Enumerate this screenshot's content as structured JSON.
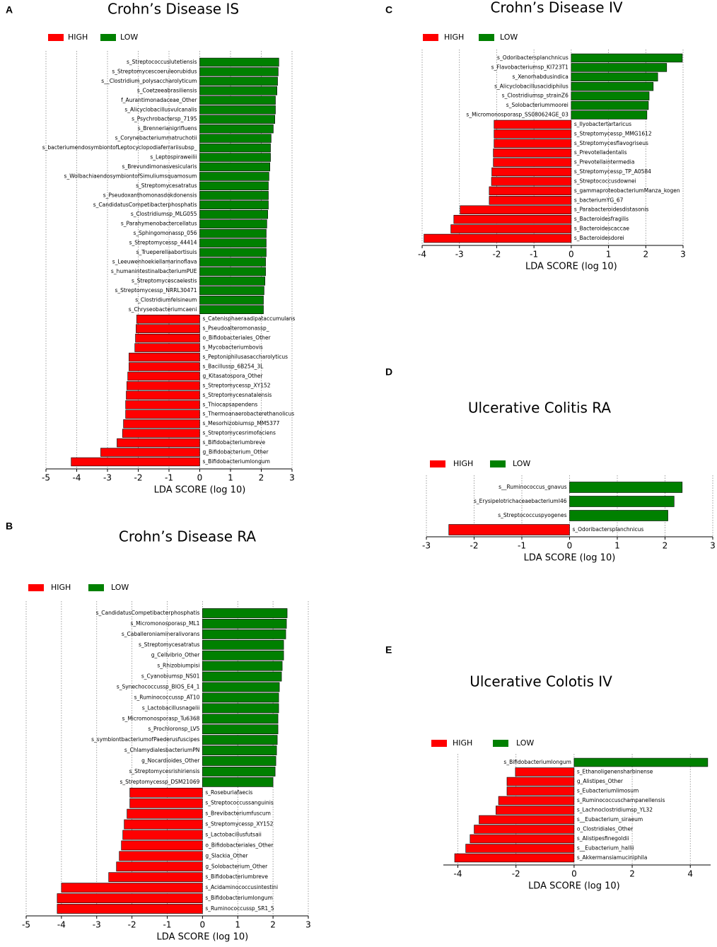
{
  "chart_data": [
    {
      "type": "bar",
      "panel": "A",
      "title": "Crohn’s Disease IS",
      "xlabel": "LDA SCORE (log 10)",
      "categories": [
        "s_Streptococcuslutetiensis",
        "s_Streptomycescoeruleorubidus",
        "s__Clostridium_polysaccharolyticum",
        "s_Coetzeeabrasiliensis",
        "f_Aurantimonadaceae_Other",
        "s_Alicyclobacillusvulcanalis",
        "s_Psychrobactersp_7195",
        "s_Brennerianigrifluens",
        "s_Corynebacteriummatruchotii",
        "s_bacteriumendosymbiontofLeptocyclopodiaferrariisubsp_",
        "s_Leptospiraweilii",
        "s_Brevundimonasvesicularis",
        "s_WolbachiaendosymbiontofSimuliumsquamosum",
        "s_Streptomycesatratus",
        "s_Pseudoxanthomonasdokdonensis",
        "s_CandidatusCompetibacterphosphatis",
        "s_Clostridiumsp_MLG055",
        "s_Parahymenobactercellatus",
        "s_Sphingomonassp_056",
        "s_Streptomycessp_44414",
        "s_Trueperellaabortisuis",
        "s_Leeuwenhoekiellamarinoflava",
        "s_humanintestinalbacteriumPUE",
        "s_Streptomycescaelestis",
        "s_Streptomycessp_NRRL30471",
        "s_Clostridiumfelsineum",
        "s_Chryseobacteriumcaeni",
        "s_Catenisphaeraadipataccumulans",
        "s_Pseudoalteromonassp_",
        "o_Bifidobacteriales_Other",
        "s_Mycobacteriumbovis",
        "s_Peptoniphilusasaccharolyticus",
        "s_Bacillussp_6B254_3L",
        "g_Kitasatospora_Other",
        "s_Streptomycessp_XY152",
        "s_Streptomycesnatalensis",
        "s_Thiocapsapendens",
        "s_Thermoanaerobacterethanolicus",
        "s_Mesorhizobiumsp_MM5377",
        "s_Streptomycesrimofaciens",
        "s_Bifidobacteriumbreve",
        "g_Bifidobacterium_Other",
        "s_Bifidobacteriumlongum"
      ],
      "series": [
        {
          "name": "HIGH",
          "color": "#ff0000",
          "values": [
            null,
            null,
            null,
            null,
            null,
            null,
            null,
            null,
            null,
            null,
            null,
            null,
            null,
            null,
            null,
            null,
            null,
            null,
            null,
            null,
            null,
            null,
            null,
            null,
            null,
            null,
            null,
            -2.05,
            -2.07,
            -2.09,
            -2.11,
            -2.3,
            -2.3,
            -2.34,
            -2.37,
            -2.39,
            -2.41,
            -2.41,
            -2.48,
            -2.51,
            -2.69,
            -3.22,
            -4.18
          ]
        },
        {
          "name": "LOW",
          "color": "#008000",
          "values": [
            2.57,
            2.55,
            2.53,
            2.51,
            2.46,
            2.46,
            2.44,
            2.39,
            2.32,
            2.3,
            2.3,
            2.28,
            2.25,
            2.23,
            2.23,
            2.23,
            2.21,
            2.18,
            2.16,
            2.16,
            2.16,
            2.14,
            2.14,
            2.12,
            2.09,
            2.07,
            2.07,
            null,
            null,
            null,
            null,
            null,
            null,
            null,
            null,
            null,
            null,
            null,
            null,
            null,
            null,
            null,
            null
          ]
        }
      ],
      "xlim": [
        -5,
        3
      ],
      "xticks": [
        -5,
        -4,
        -3,
        -2,
        -1,
        0,
        1,
        2,
        3
      ],
      "grid": true
    },
    {
      "type": "bar",
      "panel": "B",
      "title": "Crohn’s Disease RA",
      "xlabel": "LDA SCORE (log 10)",
      "categories": [
        "s_CandidatusCompetibacterphosphatis",
        "s_Micromonosporasp_ML1",
        "s_Caballeroniamineralivorans",
        "s_Streptomycesatratus",
        "g_Cellvibrio_Other",
        "s_Rhizobiumpisi",
        "s_Cyanobiumsp_NS01",
        "s_Synechococcussp_BIOS_E4_1",
        "s_Ruminococcussp_AT10",
        "s_Lactobacillusnagelii",
        "s_Micromonosporasp_Tu6368",
        "s_Prochloronsp_LV5",
        "s_symbiontbacteriumofPaederusfuscipes",
        "s_ChlamydialesbacteriumPN",
        "g_Nocardioides_Other",
        "s_Streptomycesrishiriensis",
        "s_Streptomycessp_DSM21069",
        "s_Roseburiafaecis",
        "s_Streptococcussanguinis",
        "s_Brevibacteriumfuscum",
        "s_Streptomycessp_XY152",
        "s_Lactobacillusfutsaii",
        "o_Bifidobacteriales_Other",
        "g_Slackia_Other",
        "g_Solobacterium_Other",
        "s_Bifidobacteriumbreve",
        "s_Acidaminococcusintestini",
        "s_Bifidobacteriumlongum",
        "s_Ruminococcussp_SR1_5"
      ],
      "series": [
        {
          "name": "HIGH",
          "color": "#ff0000",
          "values": [
            null,
            null,
            null,
            null,
            null,
            null,
            null,
            null,
            null,
            null,
            null,
            null,
            null,
            null,
            null,
            null,
            null,
            -2.06,
            -2.06,
            -2.14,
            -2.22,
            -2.26,
            -2.3,
            -2.36,
            -2.44,
            -2.66,
            -4.0,
            -4.12,
            -4.12
          ]
        },
        {
          "name": "LOW",
          "color": "#008000",
          "values": [
            2.4,
            2.38,
            2.36,
            2.3,
            2.3,
            2.26,
            2.24,
            2.18,
            2.16,
            2.16,
            2.14,
            2.14,
            2.12,
            2.1,
            2.08,
            2.06,
            2.0,
            null,
            null,
            null,
            null,
            null,
            null,
            null,
            null,
            null,
            null,
            null,
            null
          ]
        }
      ],
      "xlim": [
        -5,
        3
      ],
      "xticks": [
        -5,
        -4,
        -3,
        -2,
        -1,
        0,
        1,
        2,
        3
      ],
      "grid": true
    },
    {
      "type": "bar",
      "panel": "C",
      "title": "Crohn’s Disease IV",
      "xlabel": "LDA SCORE (log 10)",
      "categories": [
        "s_Odoribactersplanchnicus",
        "s_Flavobacteriumsp_KI723T1",
        "s_Xenorhabdusindica",
        "s_Alicyclobacillusacidiphilus",
        "s_Clostridiumsp_strainZ6",
        "s_Solobacteriummoorei",
        "s_Micromonosporasp_SS080624GE_03",
        "s_Ilyobactertartaricus",
        "s_Streptomycessp_MMG1612",
        "s_Streptomycesflavogriseus",
        "s_Prevotelladentalis",
        "s_Prevotellaintermedia",
        "s_Streptomycessp_TP_A0584",
        "s_Streptococcusdownei",
        "s_gammaproteobacteriumManza_kogen",
        "s_bacteriumYG_67",
        "s_Parabacteroidesdistasonis",
        "s_Bacteroidesfragilis",
        "s_Bacteroidescaccae",
        "s_Bacteroidesdorei"
      ],
      "series": [
        {
          "name": "HIGH",
          "color": "#ff0000",
          "values": [
            null,
            null,
            null,
            null,
            null,
            null,
            null,
            -2.07,
            -2.07,
            -2.07,
            -2.09,
            -2.09,
            -2.13,
            -2.14,
            -2.2,
            -2.2,
            -2.98,
            -3.15,
            -3.23,
            -3.95
          ]
        },
        {
          "name": "LOW",
          "color": "#008000",
          "values": [
            2.98,
            2.56,
            2.32,
            2.2,
            2.09,
            2.07,
            2.03,
            null,
            null,
            null,
            null,
            null,
            null,
            null,
            null,
            null,
            null,
            null,
            null,
            null
          ]
        }
      ],
      "xlim": [
        -4,
        3
      ],
      "xticks": [
        -4,
        -3,
        -2,
        -1,
        0,
        1,
        2,
        3
      ],
      "grid": true
    },
    {
      "type": "bar",
      "panel": "D",
      "title": "Ulcerative Colitis RA",
      "xlabel": "LDA SCORE (log 10)",
      "categories": [
        "s__Ruminococcus_gnavus",
        "s_ErysipelotrichaceaebacteriumI46",
        "s_Streptococcuspyogenes",
        "s_Odoribactersplanchnicus"
      ],
      "series": [
        {
          "name": "HIGH",
          "color": "#ff0000",
          "values": [
            null,
            null,
            null,
            -2.53
          ]
        },
        {
          "name": "LOW",
          "color": "#008000",
          "values": [
            2.36,
            2.19,
            2.06,
            null
          ]
        }
      ],
      "xlim": [
        -3,
        3
      ],
      "xticks": [
        -3,
        -2,
        -1,
        0,
        1,
        2,
        3
      ],
      "grid": true
    },
    {
      "type": "bar",
      "panel": "E",
      "title": "Ulcerative Colotis IV",
      "xlabel": "LDA SCORE (log 10)",
      "categories": [
        "s_Bifidobacteriumlongum",
        "s_Ethanoligenensharbinense",
        "g_Alistipes_Other",
        "s_Eubacteriumlimosum",
        "s_Ruminococcuschampanellensis",
        "s_Lachnoclostridiumsp_YL32",
        "s__Eubacterium_siraeum",
        "o_Clostridiales_Other",
        "s_Alistipesfinegoldii",
        "s__Eubacterium_hallii",
        "s_Akkermansiamuciniphila"
      ],
      "series": [
        {
          "name": "HIGH",
          "color": "#ff0000",
          "values": [
            null,
            -2.02,
            -2.31,
            -2.31,
            -2.6,
            -2.69,
            -3.27,
            -3.44,
            -3.58,
            -3.73,
            -4.11
          ]
        },
        {
          "name": "LOW",
          "color": "#008000",
          "values": [
            4.6,
            null,
            null,
            null,
            null,
            null,
            null,
            null,
            null,
            null,
            null
          ]
        }
      ],
      "xlim": [
        -4.5,
        4.7
      ],
      "xticks": [
        -4,
        -2,
        0,
        2,
        4
      ],
      "grid": true
    }
  ]
}
